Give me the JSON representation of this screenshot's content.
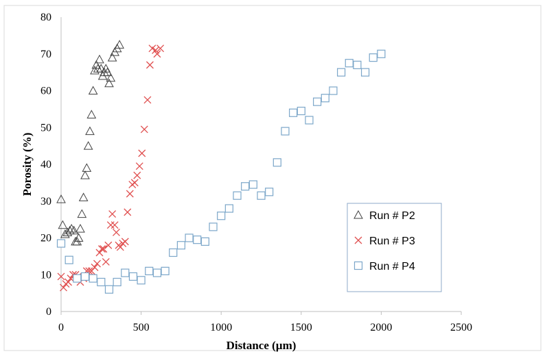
{
  "chart_data": {
    "type": "scatter",
    "title": "",
    "xlabel": "Distance (µm)",
    "ylabel": "Porosity (%)",
    "xlim": [
      0,
      2500
    ],
    "ylim": [
      0,
      80
    ],
    "xticks": [
      "0",
      "500",
      "1000",
      "1500",
      "2000",
      "2500"
    ],
    "yticks": [
      "0",
      "10",
      "20",
      "30",
      "40",
      "50",
      "60",
      "70",
      "80"
    ],
    "grid": false,
    "legend_position": "lower-right",
    "series": [
      {
        "name": "Run # P2",
        "marker": "triangle",
        "color": "#404040",
        "points": [
          [
            0,
            30.5
          ],
          [
            10,
            23.5
          ],
          [
            25,
            21
          ],
          [
            40,
            21.5
          ],
          [
            55,
            22
          ],
          [
            65,
            22.5
          ],
          [
            80,
            22
          ],
          [
            90,
            19
          ],
          [
            100,
            19
          ],
          [
            110,
            20
          ],
          [
            120,
            22.5
          ],
          [
            130,
            26.5
          ],
          [
            140,
            31
          ],
          [
            150,
            37
          ],
          [
            160,
            39
          ],
          [
            170,
            45
          ],
          [
            180,
            49
          ],
          [
            190,
            53.5
          ],
          [
            200,
            60
          ],
          [
            210,
            65.5
          ],
          [
            220,
            67
          ],
          [
            230,
            66
          ],
          [
            240,
            68.5
          ],
          [
            250,
            66
          ],
          [
            260,
            64
          ],
          [
            270,
            65
          ],
          [
            280,
            66
          ],
          [
            290,
            65
          ],
          [
            300,
            62
          ],
          [
            310,
            63.5
          ],
          [
            320,
            69
          ],
          [
            335,
            70.5
          ],
          [
            350,
            71.5
          ],
          [
            365,
            72.5
          ]
        ]
      },
      {
        "name": "Run # P3",
        "marker": "cross",
        "color": "#e05050",
        "points": [
          [
            0,
            9.5
          ],
          [
            15,
            6.5
          ],
          [
            30,
            7.5
          ],
          [
            45,
            8
          ],
          [
            60,
            9
          ],
          [
            75,
            10
          ],
          [
            90,
            10
          ],
          [
            105,
            9.5
          ],
          [
            120,
            8
          ],
          [
            140,
            9
          ],
          [
            160,
            11
          ],
          [
            175,
            11
          ],
          [
            190,
            11
          ],
          [
            210,
            12
          ],
          [
            225,
            13
          ],
          [
            240,
            16
          ],
          [
            255,
            17
          ],
          [
            265,
            17
          ],
          [
            280,
            13.5
          ],
          [
            295,
            18
          ],
          [
            310,
            23.5
          ],
          [
            320,
            26.5
          ],
          [
            335,
            23.5
          ],
          [
            345,
            21.5
          ],
          [
            360,
            18
          ],
          [
            370,
            17.5
          ],
          [
            385,
            18.5
          ],
          [
            400,
            19
          ],
          [
            415,
            27
          ],
          [
            430,
            32
          ],
          [
            445,
            34.5
          ],
          [
            460,
            35
          ],
          [
            475,
            37
          ],
          [
            490,
            39.5
          ],
          [
            505,
            43
          ],
          [
            520,
            49.5
          ],
          [
            540,
            57.5
          ],
          [
            555,
            67
          ],
          [
            570,
            71.5
          ],
          [
            590,
            71
          ],
          [
            600,
            70
          ],
          [
            620,
            71.5
          ]
        ]
      },
      {
        "name": "Run # P4",
        "marker": "square",
        "color": "#7ba6c9",
        "points": [
          [
            0,
            18.5
          ],
          [
            50,
            14
          ],
          [
            100,
            9
          ],
          [
            150,
            9.5
          ],
          [
            200,
            9
          ],
          [
            250,
            8
          ],
          [
            300,
            6
          ],
          [
            350,
            8
          ],
          [
            400,
            10.5
          ],
          [
            450,
            9.5
          ],
          [
            500,
            8.5
          ],
          [
            550,
            11
          ],
          [
            600,
            10.5
          ],
          [
            650,
            11
          ],
          [
            700,
            16
          ],
          [
            750,
            18
          ],
          [
            800,
            20
          ],
          [
            850,
            19.5
          ],
          [
            900,
            19
          ],
          [
            950,
            23
          ],
          [
            1000,
            26
          ],
          [
            1050,
            28
          ],
          [
            1100,
            31.5
          ],
          [
            1150,
            34
          ],
          [
            1200,
            34.5
          ],
          [
            1250,
            31.5
          ],
          [
            1300,
            32.5
          ],
          [
            1350,
            40.5
          ],
          [
            1400,
            49
          ],
          [
            1450,
            54
          ],
          [
            1500,
            54.5
          ],
          [
            1550,
            52
          ],
          [
            1600,
            57
          ],
          [
            1650,
            58
          ],
          [
            1700,
            60
          ],
          [
            1750,
            65
          ],
          [
            1800,
            67.5
          ],
          [
            1850,
            67
          ],
          [
            1900,
            65
          ],
          [
            1950,
            69
          ],
          [
            2000,
            70
          ]
        ]
      }
    ]
  }
}
